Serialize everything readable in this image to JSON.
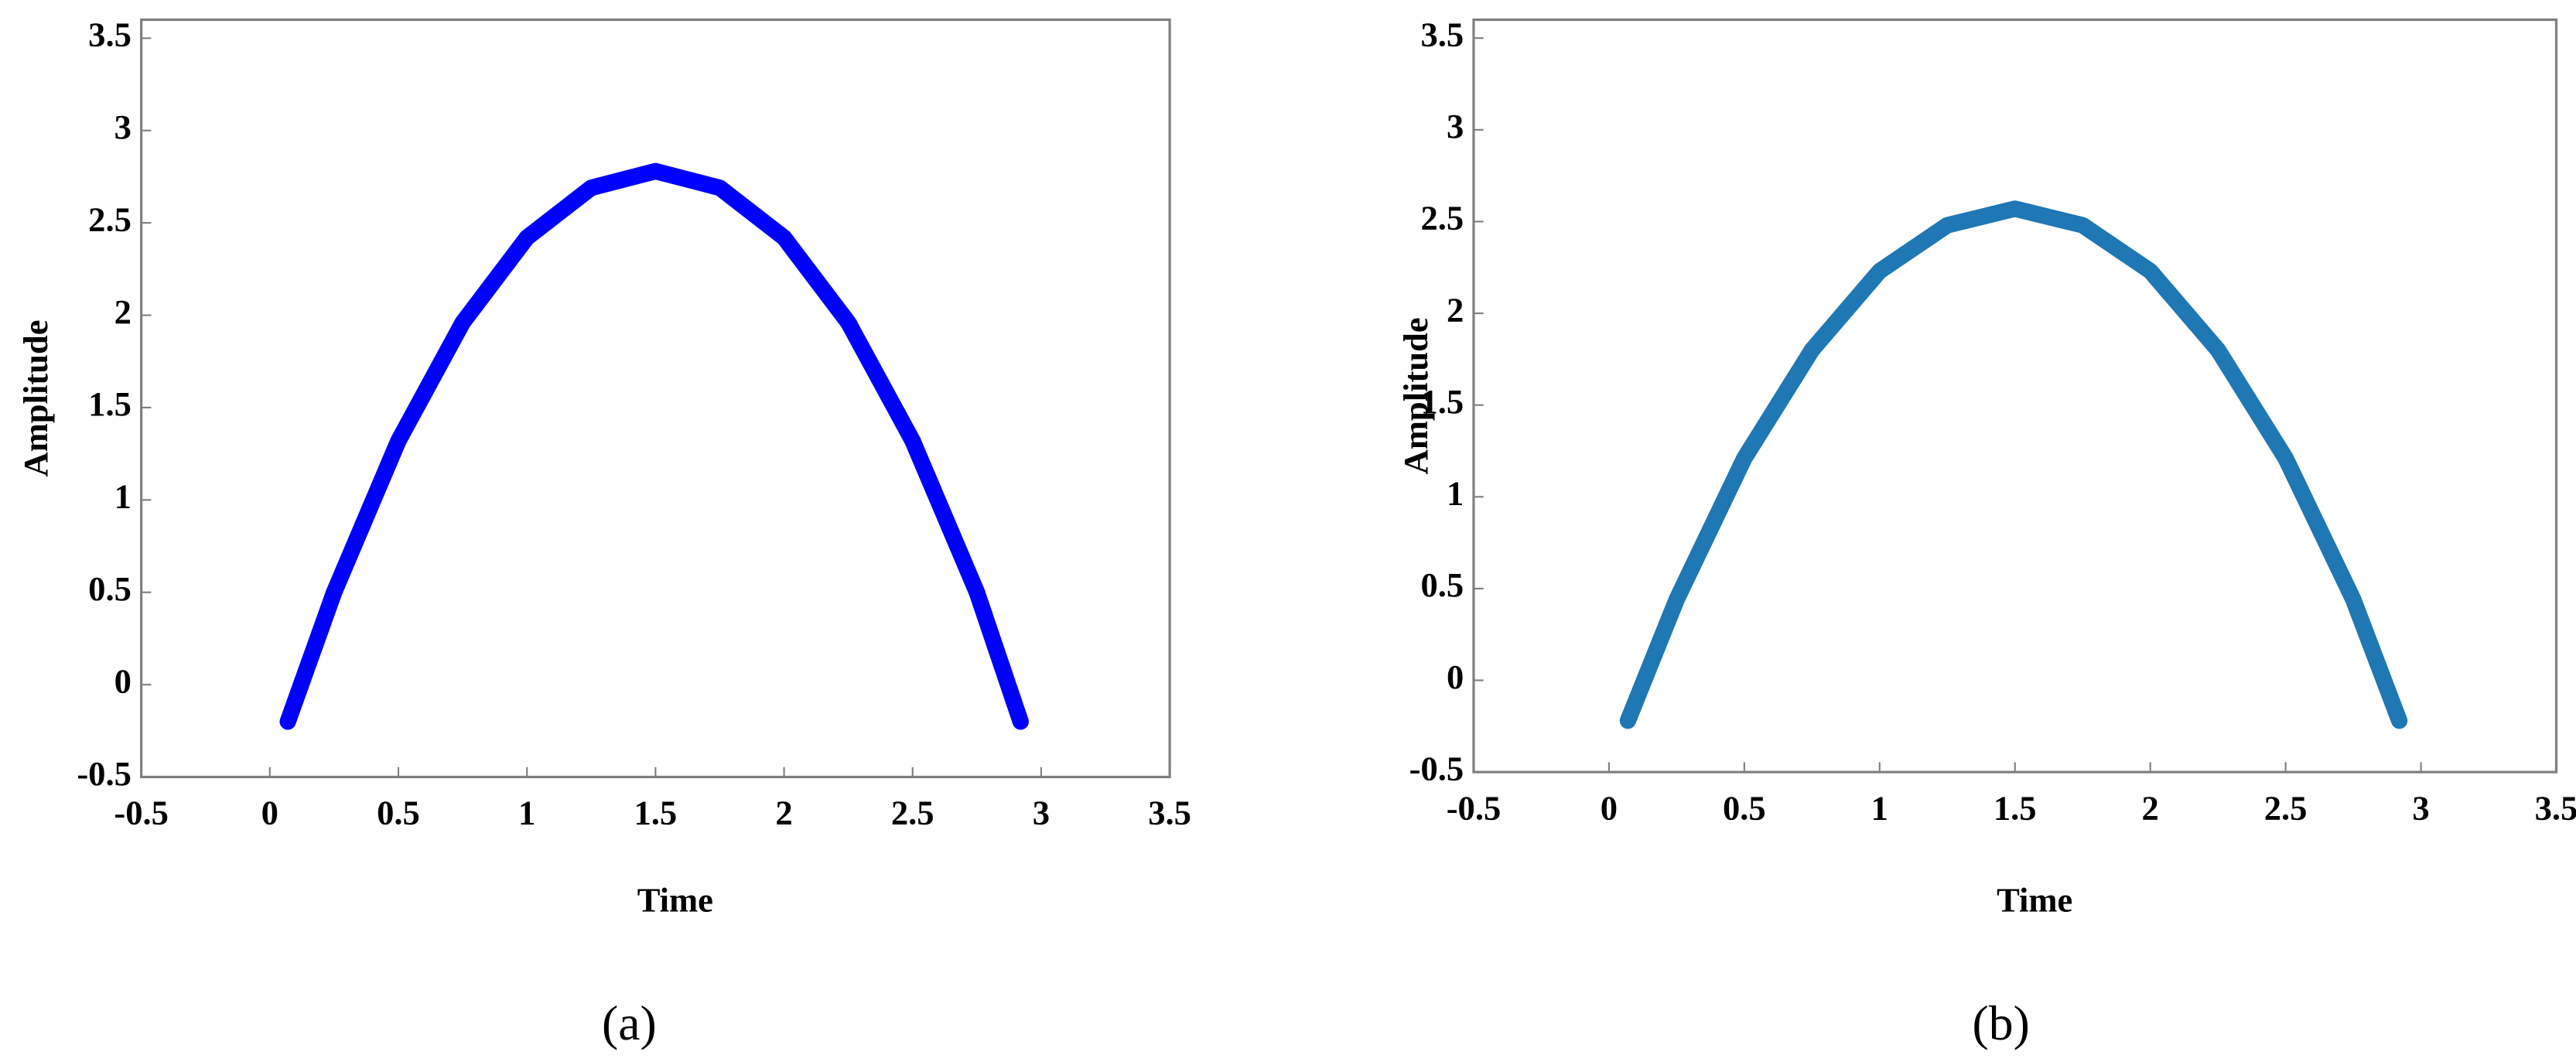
{
  "chart_data": [
    {
      "type": "line",
      "caption": "(a)",
      "xlabel": "Time",
      "ylabel": "Amplitude",
      "x": [
        0.07,
        0.25,
        0.5,
        0.75,
        1,
        1.25,
        1.5,
        1.75,
        2,
        2.25,
        2.5,
        2.75,
        2.92
      ],
      "series": [
        {
          "color": "#0000ff",
          "values": [
            -0.2,
            0.5,
            1.32,
            1.96,
            2.42,
            2.69,
            2.78,
            2.69,
            2.42,
            1.96,
            1.32,
            0.5,
            -0.2
          ]
        }
      ],
      "xlim": [
        -0.5,
        3.5
      ],
      "xticks": [
        -0.5,
        0,
        0.5,
        1,
        1.5,
        2,
        2.5,
        3,
        3.5
      ],
      "ylim": [
        -0.5,
        3.6
      ],
      "yticks": [
        -0.5,
        0,
        0.5,
        1,
        1.5,
        2,
        2.5,
        3,
        3.5
      ]
    },
    {
      "type": "line",
      "caption": "(b)",
      "xlabel": "Time",
      "ylabel": "Amplitude",
      "x": [
        0.07,
        0.25,
        0.5,
        0.75,
        1,
        1.25,
        1.5,
        1.75,
        2,
        2.25,
        2.5,
        2.75,
        2.92
      ],
      "series": [
        {
          "color": "#1f77b4",
          "values": [
            -0.22,
            0.44,
            1.21,
            1.8,
            2.23,
            2.48,
            2.57,
            2.48,
            2.23,
            1.8,
            1.21,
            0.44,
            -0.22
          ]
        }
      ],
      "xlim": [
        -0.5,
        3.5
      ],
      "xticks": [
        -0.5,
        0,
        0.5,
        1,
        1.5,
        2,
        2.5,
        3,
        3.5
      ],
      "ylim": [
        -0.5,
        3.6
      ],
      "yticks": [
        -0.5,
        0,
        0.5,
        1,
        1.5,
        2,
        2.5,
        3,
        3.5
      ]
    }
  ]
}
